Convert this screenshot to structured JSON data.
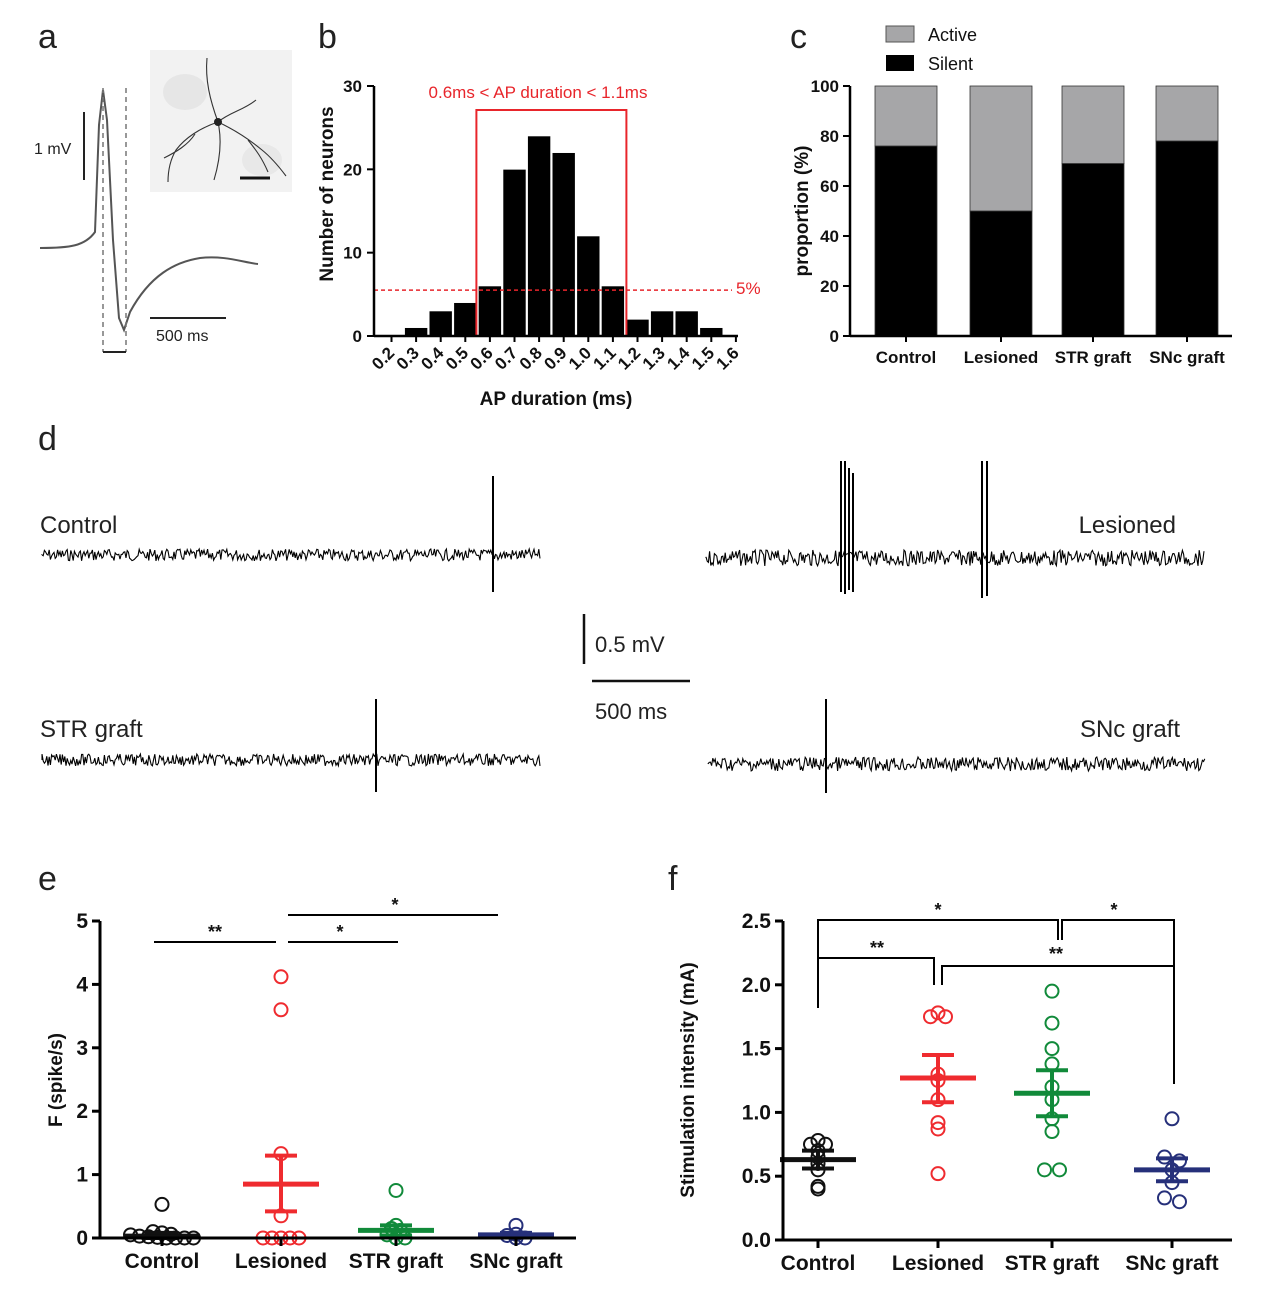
{
  "panel_labels": {
    "a": "a",
    "b": "b",
    "c": "c",
    "d": "d",
    "e": "e",
    "f": "f"
  },
  "colors": {
    "control": "#111111",
    "lesioned": "#ef2b2f",
    "str_graft": "#118a3a",
    "snc_graft": "#26307a",
    "active": "#a6a6a8",
    "silent": "#000000",
    "annotation": "#e8252b"
  },
  "panel_a": {
    "voltage_scale": "1 mV",
    "time_scale": "500 ms"
  },
  "panel_d": {
    "traces": [
      "Control",
      "Lesioned",
      "STR graft",
      "SNc graft"
    ],
    "voltage_scale": "0.5 mV",
    "time_scale": "500 ms"
  },
  "chart_data": [
    {
      "id": "b",
      "type": "bar",
      "categories": [
        "0.2",
        "0.3",
        "0.4",
        "0.5",
        "0.6",
        "0.7",
        "0.8",
        "0.9",
        "1.0",
        "1.1",
        "1.2",
        "1.3",
        "1.4",
        "1.5",
        "1.6"
      ],
      "values": [
        0,
        1,
        3,
        4,
        6,
        20,
        24,
        22,
        12,
        6,
        2,
        3,
        3,
        1,
        0
      ],
      "xlabel": "AP duration (ms)",
      "ylabel": "Number of neurons",
      "ylim": [
        0,
        30
      ],
      "yticks": [
        0,
        10,
        20,
        30
      ],
      "threshold_line": {
        "value": 5.5,
        "label": "5%"
      },
      "highlight_box": {
        "from": "0.6",
        "to": "1.1",
        "label": "0.6ms < AP duration < 1.1ms"
      }
    },
    {
      "id": "c",
      "type": "bar",
      "stacked": true,
      "categories": [
        "Control",
        "Lesioned",
        "STR graft",
        "SNc graft"
      ],
      "series": [
        {
          "name": "Silent",
          "values": [
            76,
            50,
            69,
            78
          ]
        },
        {
          "name": "Active",
          "values": [
            24,
            50,
            31,
            22
          ]
        }
      ],
      "legend": [
        "Active",
        "Silent"
      ],
      "ylabel": "proportion (%)",
      "ylim": [
        0,
        100
      ],
      "yticks": [
        0,
        20,
        40,
        60,
        80,
        100
      ]
    },
    {
      "id": "e",
      "type": "scatter",
      "categories": [
        "Control",
        "Lesioned",
        "STR graft",
        "SNc graft"
      ],
      "ylabel": "F (spike/s)",
      "ylim": [
        0,
        5
      ],
      "yticks": [
        0,
        1,
        2,
        3,
        4,
        5
      ],
      "groups": [
        {
          "name": "Control",
          "mean": 0.03,
          "sem_low": 0.0,
          "sem_high": 0.08,
          "points": [
            0.53,
            0.1,
            0.08,
            0.06,
            0.05,
            0.03,
            0.02,
            0.01,
            0.0,
            0.0,
            0.0,
            0.0
          ]
        },
        {
          "name": "Lesioned",
          "mean": 0.85,
          "sem_low": 0.42,
          "sem_high": 1.3,
          "points": [
            4.12,
            3.6,
            1.33,
            0.35,
            0.0,
            0.0,
            0.0,
            0.0,
            0.0
          ]
        },
        {
          "name": "STR graft",
          "mean": 0.12,
          "sem_low": 0.04,
          "sem_high": 0.2,
          "points": [
            0.75,
            0.2,
            0.15,
            0.12,
            0.05,
            0.0,
            0.0
          ]
        },
        {
          "name": "SNc graft",
          "mean": 0.05,
          "sem_low": 0.01,
          "sem_high": 0.08,
          "points": [
            0.2,
            0.06,
            0.04,
            0.0,
            0.0
          ]
        }
      ],
      "significance": [
        {
          "from": "Control",
          "to": "Lesioned",
          "label": "**"
        },
        {
          "from": "Lesioned",
          "to": "STR graft",
          "label": "*"
        },
        {
          "from": "Lesioned",
          "to": "SNc graft",
          "label": "*"
        }
      ]
    },
    {
      "id": "f",
      "type": "scatter",
      "categories": [
        "Control",
        "Lesioned",
        "STR graft",
        "SNc graft"
      ],
      "ylabel": "Stimulation intensity (mA)",
      "ylim": [
        0,
        2.5
      ],
      "yticks": [
        "0.0",
        "0.5",
        "1.0",
        "1.5",
        "2.0",
        "2.5"
      ],
      "groups": [
        {
          "name": "Control",
          "mean": 0.63,
          "sem_low": 0.56,
          "sem_high": 0.7,
          "points": [
            0.78,
            0.75,
            0.75,
            0.7,
            0.65,
            0.6,
            0.55,
            0.42,
            0.4
          ]
        },
        {
          "name": "Lesioned",
          "mean": 1.27,
          "sem_low": 1.08,
          "sem_high": 1.45,
          "points": [
            1.78,
            1.75,
            1.75,
            1.3,
            1.25,
            1.1,
            0.92,
            0.87,
            0.52
          ]
        },
        {
          "name": "STR graft",
          "mean": 1.15,
          "sem_low": 0.97,
          "sem_high": 1.33,
          "points": [
            1.95,
            1.7,
            1.5,
            1.38,
            1.2,
            1.1,
            0.95,
            0.85,
            0.55,
            0.55
          ]
        },
        {
          "name": "SNc graft",
          "mean": 0.55,
          "sem_low": 0.46,
          "sem_high": 0.64,
          "points": [
            0.95,
            0.65,
            0.62,
            0.55,
            0.45,
            0.33,
            0.3
          ]
        }
      ],
      "significance": [
        {
          "from": "Control",
          "to": "Lesioned",
          "label": "**"
        },
        {
          "from": "Control",
          "to": "STR graft",
          "label": "*"
        },
        {
          "from": "Lesioned",
          "to": "SNc graft",
          "label": "**"
        },
        {
          "from": "STR graft",
          "to": "SNc graft",
          "label": "*"
        }
      ]
    }
  ]
}
